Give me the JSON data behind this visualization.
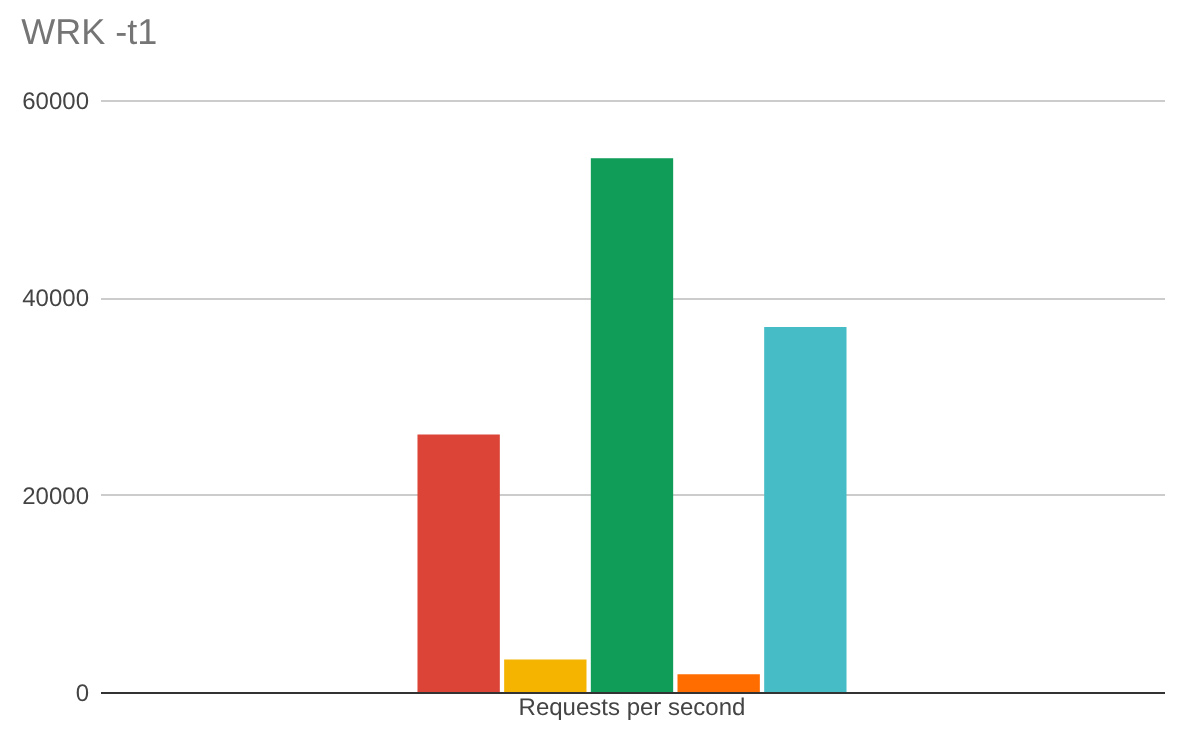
{
  "chart_data": {
    "type": "bar",
    "title": "WRK -t1",
    "categories": [
      "Requests per second"
    ],
    "series": [
      {
        "color": "#db4437",
        "values": [
          26100
        ]
      },
      {
        "color": "#f4b400",
        "values": [
          3300
        ]
      },
      {
        "color": "#0f9d58",
        "values": [
          54100
        ]
      },
      {
        "color": "#ff6d00",
        "values": [
          1800
        ]
      },
      {
        "color": "#46bdc6",
        "values": [
          37000
        ]
      }
    ],
    "ylim": [
      0,
      60000
    ],
    "yticks": [
      0,
      20000,
      40000,
      60000
    ],
    "grid": "y",
    "legend": false
  }
}
